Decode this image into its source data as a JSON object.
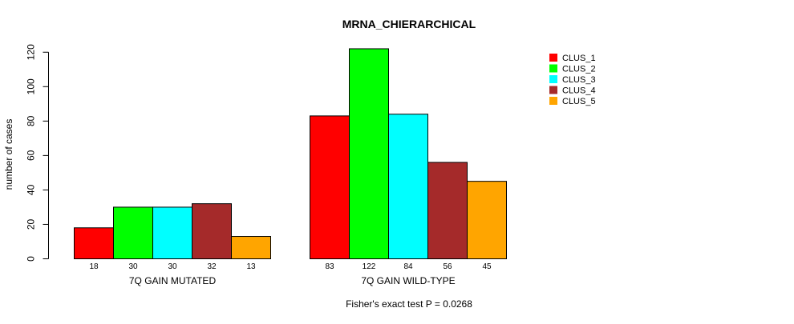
{
  "chart_data": {
    "type": "bar",
    "title": "MRNA_CHIERARCHICAL",
    "ylabel": "number of cases",
    "xlabel": "",
    "ylim": [
      0,
      122
    ],
    "yticks": [
      0,
      20,
      40,
      60,
      80,
      100,
      120
    ],
    "categories": [
      "7Q GAIN MUTATED",
      "7Q GAIN WILD-TYPE"
    ],
    "series": [
      {
        "name": "CLUS_1",
        "color": "#ff0000",
        "values": [
          18,
          83
        ]
      },
      {
        "name": "CLUS_2",
        "color": "#00ff00",
        "values": [
          30,
          122
        ]
      },
      {
        "name": "CLUS_3",
        "color": "#00ffff",
        "values": [
          30,
          84
        ]
      },
      {
        "name": "CLUS_4",
        "color": "#a52a2a",
        "values": [
          32,
          56
        ]
      },
      {
        "name": "CLUS_5",
        "color": "#ffa500",
        "values": [
          13,
          45
        ]
      }
    ],
    "legend_position": "top-right",
    "footnote": "Fisher's exact test P = 0.0268"
  }
}
